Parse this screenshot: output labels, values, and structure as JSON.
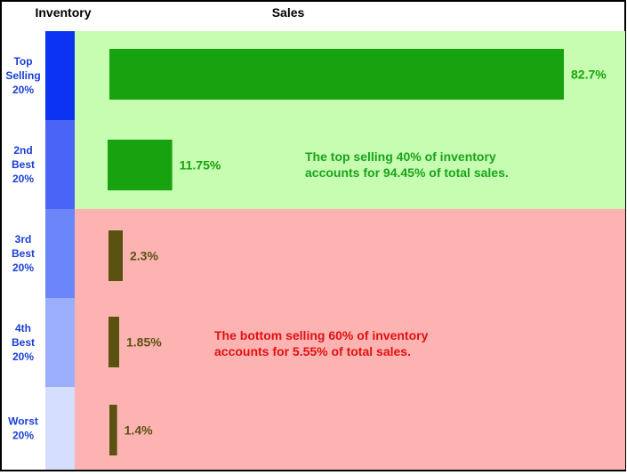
{
  "chart_data": {
    "type": "bar",
    "orientation": "horizontal",
    "header_inventory": "Inventory",
    "header_sales": "Sales",
    "categories": [
      [
        "Top",
        "Selling",
        "20%"
      ],
      [
        "2nd",
        "Best",
        "20%"
      ],
      [
        "3rd",
        "Best",
        "20%"
      ],
      [
        "4th",
        "Best",
        "20%"
      ],
      [
        "Worst",
        "20%"
      ]
    ],
    "values": [
      82.7,
      11.75,
      2.3,
      1.85,
      1.4
    ],
    "value_labels": [
      "82.7%",
      "11.75%",
      "2.3%",
      "1.85%",
      "1.4%"
    ],
    "annotations": [
      {
        "lines": [
          "The top selling 40% of inventory",
          "accounts for 94.45% of total sales."
        ],
        "color": "#1aa31a"
      },
      {
        "lines": [
          "The bottom selling 60% of inventory",
          "accounts for 5.55% of total sales."
        ],
        "color": "#e01010"
      }
    ],
    "colors": {
      "top_region": "#c6fdb0",
      "bottom_region": "#feb3b3",
      "top_bar": "#17a30f",
      "bottom_bar": "#5a5210",
      "top_label": "#17a30f",
      "bottom_label": "#5a5210",
      "inventory_header": "#1a3fd6",
      "sales_header": "#0c7a1c",
      "inventory_bands": [
        "#0a32f0",
        "#4a64f5",
        "#6a86f8",
        "#9aaefb",
        "#d6defd"
      ]
    },
    "top_group_count": 2,
    "legend": "none",
    "grid": false
  }
}
